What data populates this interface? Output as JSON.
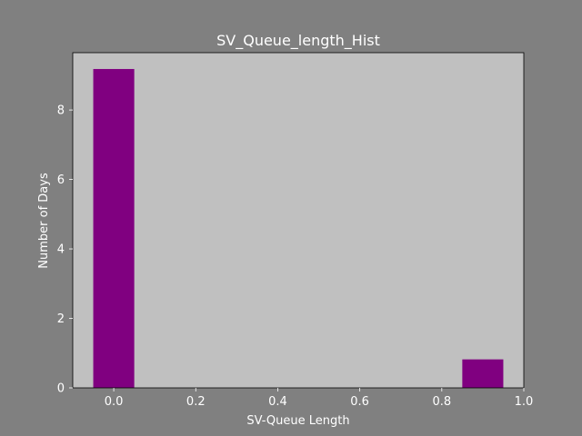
{
  "chart_data": {
    "type": "bar",
    "title": "SV_Queue_length_Hist",
    "xlabel": "SV-Queue Length",
    "ylabel": "Number of Days",
    "xlim": [
      -0.1,
      1.0
    ],
    "ylim": [
      0,
      9.65
    ],
    "x_ticks": [
      0.0,
      0.2,
      0.4,
      0.6,
      0.8,
      1.0
    ],
    "x_tick_labels": [
      "0.0",
      "0.2",
      "0.4",
      "0.6",
      "0.8",
      "1.0"
    ],
    "y_ticks": [
      0,
      2,
      4,
      6,
      8
    ],
    "y_tick_labels": [
      "0",
      "2",
      "4",
      "6",
      "8"
    ],
    "bar_width": 0.1,
    "bars": [
      {
        "x": 0.0,
        "value": 9.18
      },
      {
        "x": 0.9,
        "value": 0.82
      }
    ],
    "grid": false,
    "colors": {
      "figure_background": "#808080",
      "plot_background": "#c0c0c0",
      "bar": "#800080",
      "text": "#ffffff"
    }
  }
}
